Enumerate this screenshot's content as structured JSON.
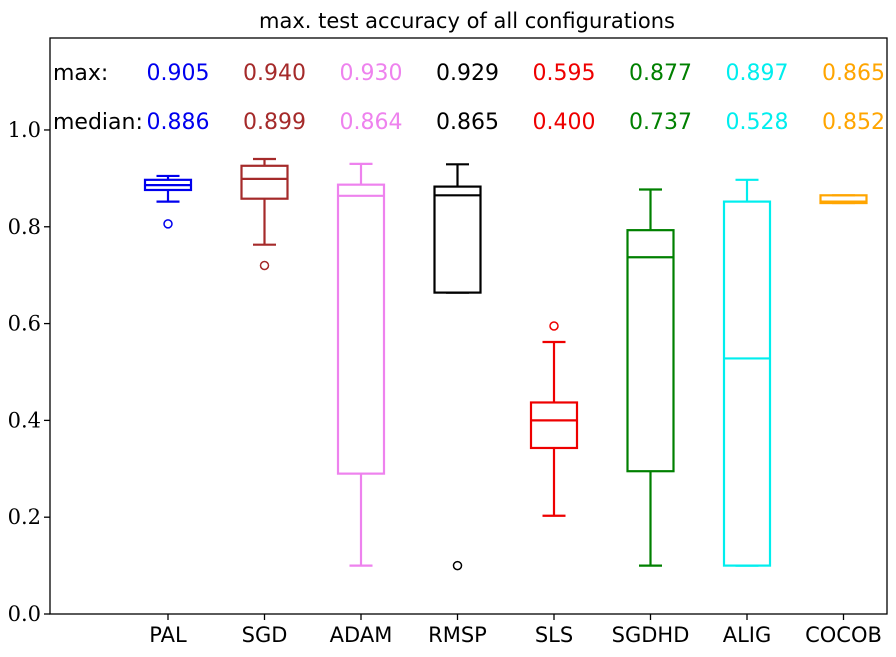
{
  "chart_data": {
    "type": "box",
    "title": "max. test accuracy of all configurations",
    "xlabel": "",
    "ylabel": "",
    "ylim": [
      0.0,
      1.19
    ],
    "yticks": [
      "0.0",
      "0.2",
      "0.4",
      "0.6",
      "0.8",
      "1.0"
    ],
    "ytick_values": [
      0.0,
      0.2,
      0.4,
      0.6,
      0.8,
      1.0
    ],
    "stat_labels": {
      "max": "max:",
      "median": "median:"
    },
    "categories": [
      "PAL",
      "SGD",
      "ADAM",
      "RMSP",
      "SLS",
      "SGDHD",
      "ALIG",
      "COCOB"
    ],
    "series": [
      {
        "name": "PAL",
        "color": "#0000ee",
        "max_label": "0.905",
        "median_label": "0.886",
        "whisker_low": 0.852,
        "q1": 0.876,
        "median": 0.886,
        "q3": 0.897,
        "whisker_high": 0.905,
        "outliers": [
          0.806
        ]
      },
      {
        "name": "SGD",
        "color": "#a52a2a",
        "max_label": "0.940",
        "median_label": "0.899",
        "whisker_low": 0.763,
        "q1": 0.858,
        "median": 0.899,
        "q3": 0.926,
        "whisker_high": 0.94,
        "outliers": [
          0.72
        ]
      },
      {
        "name": "ADAM",
        "color": "#ee82ee",
        "max_label": "0.930",
        "median_label": "0.864",
        "whisker_low": 0.1,
        "q1": 0.29,
        "median": 0.864,
        "q3": 0.887,
        "whisker_high": 0.93,
        "outliers": []
      },
      {
        "name": "RMSP",
        "color": "#000000",
        "max_label": "0.929",
        "median_label": "0.865",
        "whisker_low": 0.664,
        "q1": 0.664,
        "median": 0.865,
        "q3": 0.883,
        "whisker_high": 0.929,
        "outliers": [
          0.1
        ]
      },
      {
        "name": "SLS",
        "color": "#ee0000",
        "max_label": "0.595",
        "median_label": "0.400",
        "whisker_low": 0.203,
        "q1": 0.343,
        "median": 0.4,
        "q3": 0.437,
        "whisker_high": 0.562,
        "outliers": [
          0.595
        ]
      },
      {
        "name": "SGDHD",
        "color": "#008000",
        "max_label": "0.877",
        "median_label": "0.737",
        "whisker_low": 0.1,
        "q1": 0.295,
        "median": 0.737,
        "q3": 0.793,
        "whisker_high": 0.877,
        "outliers": []
      },
      {
        "name": "ALIG",
        "color": "#00eeee",
        "max_label": "0.897",
        "median_label": "0.528",
        "whisker_low": 0.1,
        "q1": 0.1,
        "median": 0.528,
        "q3": 0.852,
        "whisker_high": 0.897,
        "outliers": []
      },
      {
        "name": "COCOB",
        "color": "#ffa500",
        "max_label": "0.865",
        "median_label": "0.852",
        "whisker_low": 0.849,
        "q1": 0.849,
        "median": 0.852,
        "q3": 0.865,
        "whisker_high": 0.865,
        "outliers": []
      }
    ]
  }
}
